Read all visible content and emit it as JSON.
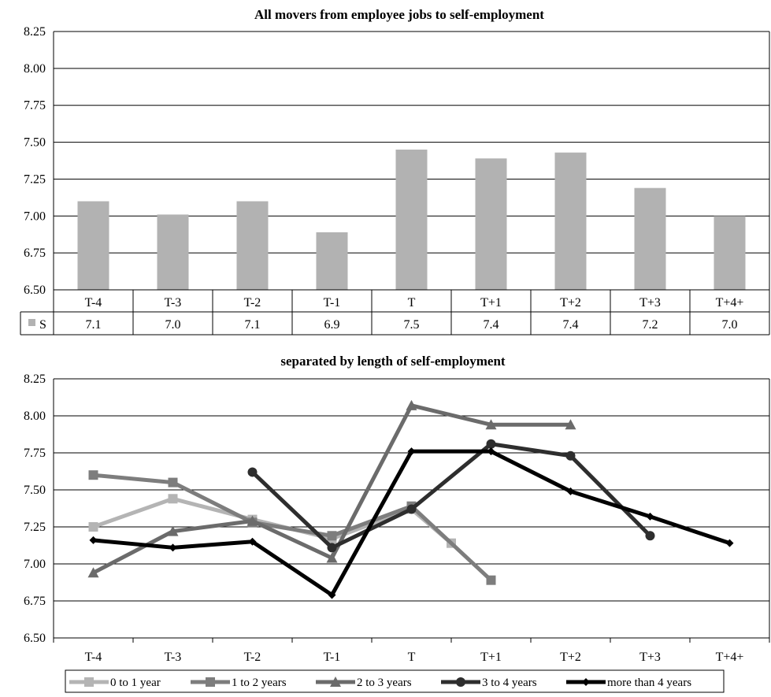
{
  "chart_data": [
    {
      "type": "bar",
      "title": "All movers from employee jobs to self-employment",
      "categories": [
        "T-4",
        "T-3",
        "T-2",
        "T-1",
        "T",
        "T+1",
        "T+2",
        "T+3",
        "T+4+"
      ],
      "ylim": [
        6.5,
        8.25
      ],
      "yticks": [
        "6.50",
        "6.75",
        "7.00",
        "7.25",
        "7.50",
        "7.75",
        "8.00",
        "8.25"
      ],
      "grid": true,
      "series": [
        {
          "name": "S",
          "values": [
            7.1,
            7.01,
            7.1,
            6.89,
            7.45,
            7.39,
            7.43,
            7.19,
            7.0
          ],
          "table_labels": [
            "7.1",
            "7.0",
            "7.1",
            "6.9",
            "7.5",
            "7.4",
            "7.4",
            "7.2",
            "7.0"
          ],
          "color": "#b2b2b2"
        }
      ]
    },
    {
      "type": "line",
      "title": "separated by length of self-employment",
      "categories": [
        "T-4",
        "T-3",
        "T-2",
        "T-1",
        "T",
        "T+1",
        "T+2",
        "T+3",
        "T+4+"
      ],
      "ylim": [
        6.5,
        8.25
      ],
      "yticks": [
        "6.50",
        "6.75",
        "7.00",
        "7.25",
        "7.50",
        "7.75",
        "8.00",
        "8.25"
      ],
      "grid": true,
      "legend": "bottom",
      "series": [
        {
          "name": "0 to 1 year",
          "color": "#b4b4b4",
          "marker": "square",
          "values": [
            7.25,
            7.44,
            7.3,
            7.17,
            7.37,
            null,
            null,
            null,
            null
          ],
          "extra_point": {
            "x_index": 4.5,
            "y": 7.14
          }
        },
        {
          "name": "1 to 2 years",
          "color": "#7d7d7d",
          "marker": "square",
          "values": [
            7.6,
            7.55,
            7.28,
            7.19,
            7.39,
            6.89,
            null,
            null,
            null
          ]
        },
        {
          "name": "2 to 3 years",
          "color": "#6b6b6b",
          "marker": "triangle",
          "values": [
            6.94,
            7.22,
            7.29,
            7.04,
            8.07,
            7.94,
            7.94,
            null,
            null
          ]
        },
        {
          "name": "3 to 4 years",
          "color": "#2e2e2e",
          "marker": "circle",
          "values": [
            null,
            null,
            7.62,
            7.11,
            7.37,
            7.81,
            7.73,
            7.19,
            null
          ]
        },
        {
          "name": "more than 4 years",
          "color": "#000000",
          "marker": "diamond",
          "values": [
            7.16,
            7.11,
            7.15,
            6.79,
            7.76,
            7.76,
            7.49,
            7.32,
            7.14
          ]
        }
      ]
    }
  ]
}
